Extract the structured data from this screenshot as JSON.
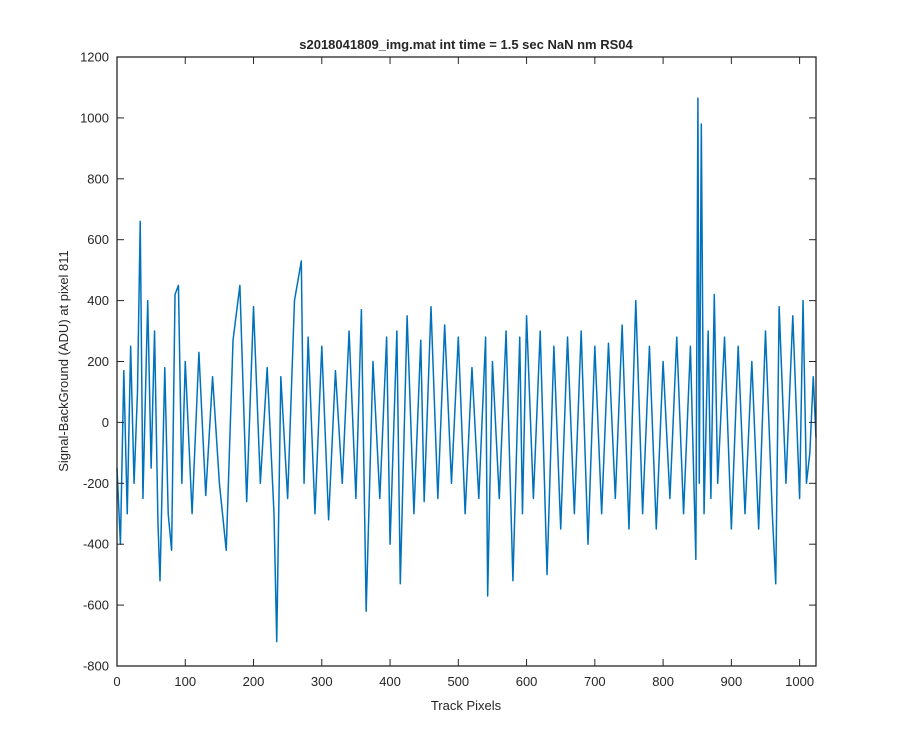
{
  "chart_data": {
    "type": "line",
    "title": "s2018041809_img.mat int time = 1.5 sec  NaN nm RS04",
    "xlabel": "Track Pixels",
    "ylabel": "Signal-BackGround (ADU) at pixel 811",
    "xlim": [
      0,
      1024
    ],
    "ylim": [
      -800,
      1200
    ],
    "xticks": [
      0,
      100,
      200,
      300,
      400,
      500,
      600,
      700,
      800,
      900,
      1000
    ],
    "yticks": [
      -800,
      -600,
      -400,
      -200,
      0,
      200,
      400,
      600,
      800,
      1000,
      1200
    ],
    "grid": false,
    "series": [
      {
        "color": "#0072bd",
        "x": [
          0,
          5,
          10,
          15,
          20,
          25,
          30,
          34,
          38,
          45,
          50,
          55,
          60,
          63,
          70,
          75,
          80,
          85,
          90,
          95,
          100,
          110,
          120,
          130,
          140,
          150,
          160,
          170,
          180,
          190,
          200,
          210,
          220,
          230,
          234,
          240,
          250,
          260,
          270,
          274,
          280,
          290,
          300,
          310,
          320,
          330,
          340,
          350,
          358,
          365,
          375,
          385,
          395,
          400,
          410,
          415,
          425,
          435,
          445,
          450,
          460,
          470,
          480,
          490,
          500,
          510,
          520,
          530,
          540,
          543,
          550,
          560,
          570,
          580,
          590,
          594,
          600,
          610,
          620,
          630,
          640,
          650,
          660,
          670,
          680,
          690,
          700,
          710,
          720,
          730,
          740,
          750,
          760,
          770,
          780,
          790,
          800,
          810,
          820,
          830,
          840,
          848,
          851,
          853,
          856,
          860,
          866,
          870,
          875,
          880,
          890,
          900,
          910,
          920,
          930,
          940,
          950,
          960,
          965,
          970,
          980,
          990,
          1000,
          1005,
          1010,
          1015,
          1020,
          1024
        ],
        "y": [
          -150,
          -400,
          170,
          -300,
          250,
          -200,
          100,
          660,
          -250,
          400,
          -150,
          300,
          -330,
          -520,
          180,
          -300,
          -420,
          420,
          450,
          -200,
          200,
          -300,
          230,
          -240,
          150,
          -200,
          -420,
          270,
          450,
          -260,
          380,
          -200,
          180,
          -300,
          -720,
          150,
          -250,
          400,
          530,
          -200,
          280,
          -300,
          250,
          -320,
          170,
          -200,
          300,
          -250,
          370,
          -620,
          200,
          -250,
          280,
          -400,
          300,
          -530,
          350,
          -300,
          270,
          -260,
          380,
          -250,
          320,
          -200,
          280,
          -300,
          180,
          -250,
          280,
          -570,
          200,
          -250,
          300,
          -520,
          280,
          -300,
          350,
          -250,
          300,
          -500,
          250,
          -350,
          280,
          -300,
          300,
          -400,
          250,
          -300,
          260,
          -250,
          320,
          -350,
          400,
          -300,
          250,
          -350,
          200,
          -250,
          280,
          -300,
          250,
          -450,
          1065,
          -200,
          980,
          -300,
          300,
          -250,
          420,
          -200,
          280,
          -350,
          250,
          -300,
          200,
          -350,
          300,
          -300,
          -530,
          380,
          -200,
          350,
          -250,
          400,
          -200,
          -100,
          150,
          -50
        ]
      }
    ]
  }
}
